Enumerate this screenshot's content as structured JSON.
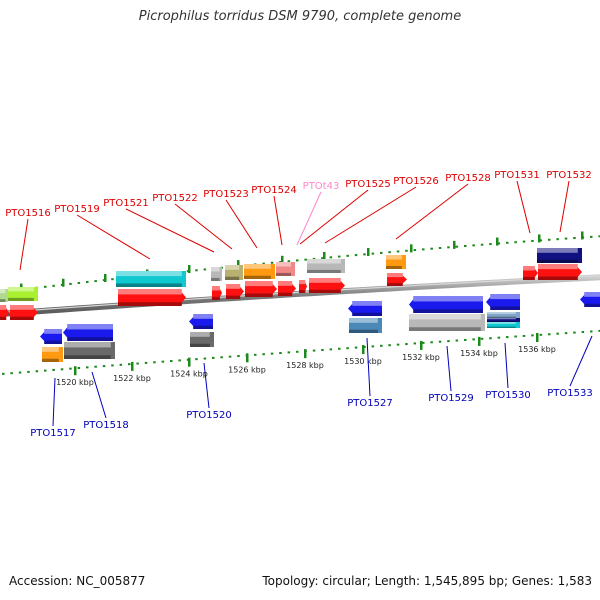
{
  "title": "Picrophilus torridus DSM 9790, complete genome",
  "footer": {
    "accession": "Accession: NC_005877",
    "summary": "Topology: circular; Length: 1,545,895 bp; Genes: 1,583"
  },
  "colors": {
    "top_label": "#dd0000",
    "bottom_label": "#0000bb",
    "special_label": "#ff88cc",
    "tick": "#1a8a1a",
    "backbone": "#888888"
  },
  "ticks": [
    {
      "label": "1520 kbp"
    },
    {
      "label": "1522 kbp"
    },
    {
      "label": "1524 kbp"
    },
    {
      "label": "1526 kbp"
    },
    {
      "label": "1528 kbp"
    },
    {
      "label": "1530 kbp"
    },
    {
      "label": "1532 kbp"
    },
    {
      "label": "1534 kbp"
    },
    {
      "label": "1536 kbp"
    }
  ],
  "top_labels": [
    {
      "text": "PTO1516",
      "color": "#dd0000"
    },
    {
      "text": "PTO1519",
      "color": "#dd0000"
    },
    {
      "text": "PTO1521",
      "color": "#dd0000"
    },
    {
      "text": "PTO1522",
      "color": "#dd0000"
    },
    {
      "text": "PTO1523",
      "color": "#dd0000"
    },
    {
      "text": "PTO1524",
      "color": "#dd0000"
    },
    {
      "text": "PTOt43",
      "color": "#ff88cc"
    },
    {
      "text": "PTO1525",
      "color": "#dd0000"
    },
    {
      "text": "PTO1526",
      "color": "#dd0000"
    },
    {
      "text": "PTO1528",
      "color": "#dd0000"
    },
    {
      "text": "PTO1531",
      "color": "#dd0000"
    },
    {
      "text": "PTO1532",
      "color": "#dd0000"
    }
  ],
  "bottom_labels": [
    {
      "text": "PTO1517"
    },
    {
      "text": "PTO1518"
    },
    {
      "text": "PTO1520"
    },
    {
      "text": "PTO1527"
    },
    {
      "text": "PTO1529"
    },
    {
      "text": "PTO1530"
    },
    {
      "text": "PTO1533"
    }
  ]
}
